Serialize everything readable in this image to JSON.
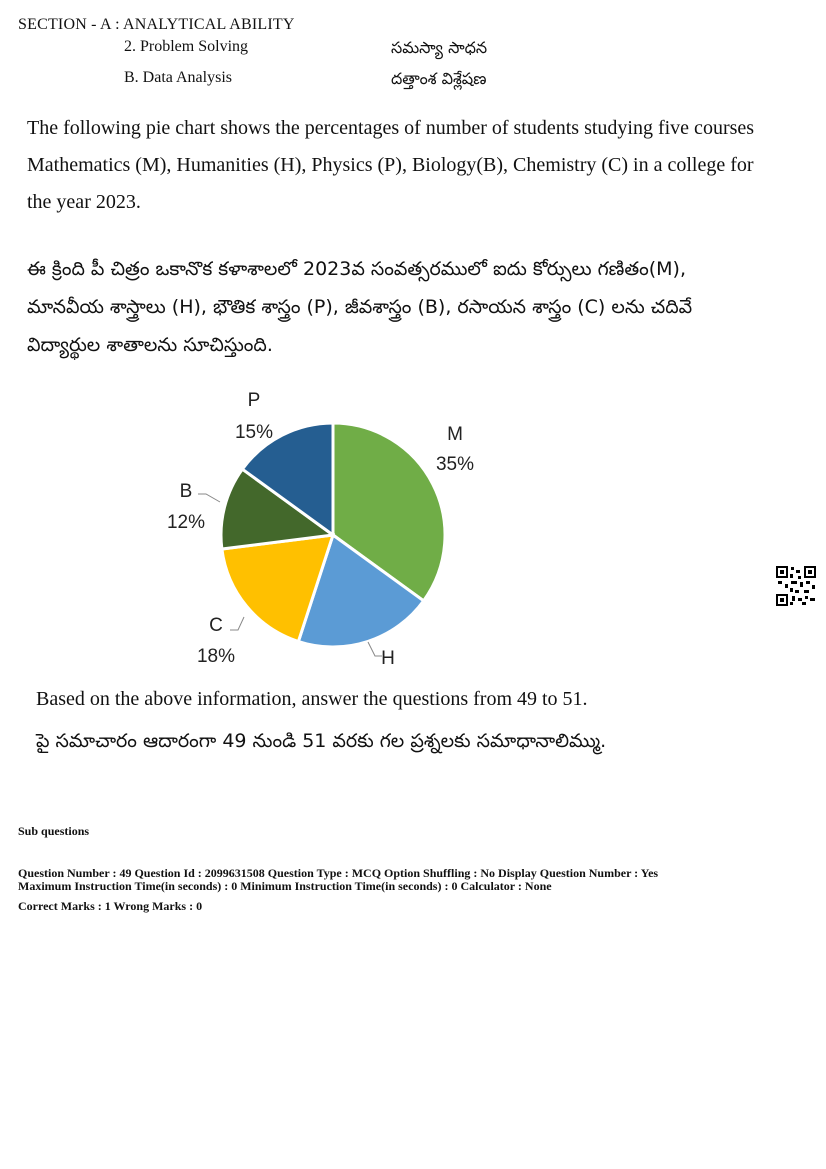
{
  "section": {
    "title": "SECTION - A : ANALYTICAL ABILITY",
    "sub1_en": "2. Problem Solving",
    "sub1_te": "సమస్యా సాధన",
    "sub2_en": "B. Data Analysis",
    "sub2_te": "దత్తాంశ విశ్లేషణ"
  },
  "question": {
    "para_en": "The following pie chart shows the percentages of number of students studying five courses Mathematics (M), Humanities (H), Physics (P), Biology(B), Chemistry (C) in a college for the year 2023.",
    "para_te": "ఈ క్రింది పీ చిత్రం ఒకానొక కళాశాలలో 2023వ సంవత్సరములో ఐదు కోర్సులు గణితం(M), మానవీయ శాస్త్రాలు (H), భౌతిక శాస్త్రం (P), జీవశాస్త్రం (B), రసాయన శాస్త్రం (C) లను చదివే విద్యార్థుల శాతాలను సూచిస్తుంది.",
    "based_en": "Based on the above information, answer the questions from 49 to 51.",
    "based_te": "పై సమాచారం ఆదారంగా 49 నుండి 51 వరకు గల ప్రశ్నలకు సమాధానాలిమ్ము."
  },
  "chart_data": {
    "type": "pie",
    "slices": [
      {
        "label": "M",
        "value": 35,
        "value_label": "35%",
        "color": "#70ad47"
      },
      {
        "label": "H",
        "value": 20,
        "value_label": "",
        "color": "#5b9bd5"
      },
      {
        "label": "C",
        "value": 18,
        "value_label": "18%",
        "color": "#ffc000"
      },
      {
        "label": "B",
        "value": 12,
        "value_label": "12%",
        "color": "#43682b"
      },
      {
        "label": "P",
        "value": 15,
        "value_label": "15%",
        "color": "#255e91"
      }
    ]
  },
  "meta": {
    "sub_questions": "Sub questions",
    "line1": "Question Number : 49  Question Id : 2099631508  Question Type : MCQ  Option Shuffling : No  Display Question Number : Yes",
    "line2": "Maximum Instruction Time(in seconds) : 0  Minimum Instruction Time(in seconds) : 0  Calculator : None",
    "line3": "Correct Marks : 1  Wrong Marks : 0"
  },
  "icons": {
    "qr": "qr-code-icon"
  }
}
